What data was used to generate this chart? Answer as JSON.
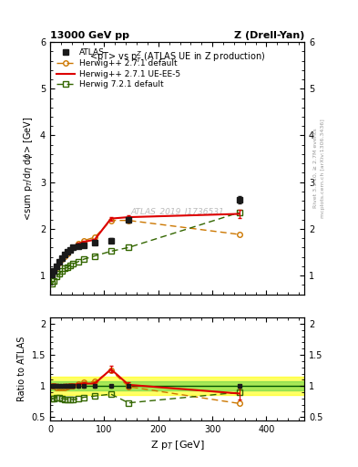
{
  "title_left": "13000 GeV pp",
  "title_right": "Z (Drell-Yan)",
  "plot_title": "<pT> vs pₚZ (ATLAS UE in Z production)",
  "watermark": "ATLAS_2019_I1736531",
  "ylabel_main": "<sum pₚ/dη dφ> [GeV]",
  "ylabel_ratio": "Ratio to ATLAS",
  "xlabel": "Z pₚ [GeV]",
  "right_label1": "mcplots.cern.ch [arXiv:1306.3436]",
  "right_label2": "Rivet 3.1.10, ≥ 2.7M events",
  "atlas_x": [
    2.5,
    7.5,
    12.5,
    17.5,
    22.5,
    27.5,
    32.5,
    37.5,
    42.5,
    52.5,
    62.5,
    82.5,
    112.5,
    145.0,
    350.0
  ],
  "atlas_y": [
    1.02,
    1.1,
    1.2,
    1.3,
    1.38,
    1.45,
    1.5,
    1.55,
    1.6,
    1.63,
    1.65,
    1.7,
    1.75,
    2.2,
    2.62
  ],
  "atlas_yerr": [
    0.02,
    0.02,
    0.02,
    0.02,
    0.02,
    0.02,
    0.02,
    0.02,
    0.02,
    0.03,
    0.03,
    0.03,
    0.05,
    0.05,
    0.08
  ],
  "hw271d_x": [
    2.5,
    7.5,
    12.5,
    17.5,
    22.5,
    27.5,
    32.5,
    37.5,
    42.5,
    52.5,
    62.5,
    82.5,
    112.5,
    145.0,
    350.0
  ],
  "hw271d_y": [
    1.02,
    1.1,
    1.18,
    1.28,
    1.35,
    1.42,
    1.48,
    1.55,
    1.6,
    1.68,
    1.75,
    1.82,
    2.18,
    2.18,
    1.88
  ],
  "hw271ue_x": [
    2.5,
    7.5,
    12.5,
    17.5,
    22.5,
    27.5,
    32.5,
    37.5,
    42.5,
    52.5,
    62.5,
    82.5,
    112.5,
    145.0,
    350.0
  ],
  "hw271ue_y": [
    1.02,
    1.12,
    1.22,
    1.32,
    1.4,
    1.48,
    1.53,
    1.58,
    1.63,
    1.68,
    1.72,
    1.77,
    2.22,
    2.25,
    2.32
  ],
  "hw271ue_yerr": [
    0.01,
    0.01,
    0.01,
    0.01,
    0.01,
    0.01,
    0.01,
    0.01,
    0.01,
    0.02,
    0.02,
    0.02,
    0.04,
    0.04,
    0.08
  ],
  "hw721d_x": [
    2.5,
    7.5,
    12.5,
    17.5,
    22.5,
    27.5,
    32.5,
    37.5,
    42.5,
    52.5,
    62.5,
    82.5,
    112.5,
    145.0,
    350.0
  ],
  "hw721d_y": [
    0.82,
    0.88,
    0.98,
    1.05,
    1.1,
    1.15,
    1.18,
    1.22,
    1.25,
    1.3,
    1.35,
    1.42,
    1.52,
    1.6,
    2.35
  ],
  "ratio_hw271d_y": [
    1.0,
    1.0,
    0.98,
    0.98,
    0.98,
    0.98,
    0.99,
    1.0,
    1.0,
    1.03,
    1.06,
    1.07,
    1.25,
    0.99,
    0.72
  ],
  "ratio_hw271ue_y": [
    1.0,
    1.02,
    1.02,
    1.01,
    1.01,
    1.02,
    1.02,
    1.02,
    1.02,
    1.03,
    1.04,
    1.04,
    1.27,
    1.02,
    0.88
  ],
  "ratio_hw271ue_yerr": [
    0.01,
    0.01,
    0.01,
    0.01,
    0.01,
    0.01,
    0.01,
    0.01,
    0.01,
    0.02,
    0.02,
    0.02,
    0.05,
    0.04,
    0.09
  ],
  "ratio_hw721d_y": [
    0.8,
    0.8,
    0.82,
    0.81,
    0.8,
    0.79,
    0.79,
    0.79,
    0.78,
    0.8,
    0.82,
    0.84,
    0.87,
    0.73,
    0.9
  ],
  "atlas_color": "#1a1a1a",
  "hw271d_color": "#cc7700",
  "hw271ue_color": "#dd0000",
  "hw721d_color": "#336600",
  "xlim": [
    0,
    470
  ],
  "ylim_main": [
    0.6,
    6.0
  ],
  "ylim_ratio": [
    0.45,
    2.1
  ],
  "xticks": [
    0,
    100,
    200,
    300,
    400
  ],
  "yticks_main": [
    1,
    2,
    3,
    4,
    5,
    6
  ],
  "yticks_ratio": [
    0.5,
    1.0,
    1.5,
    2.0
  ]
}
